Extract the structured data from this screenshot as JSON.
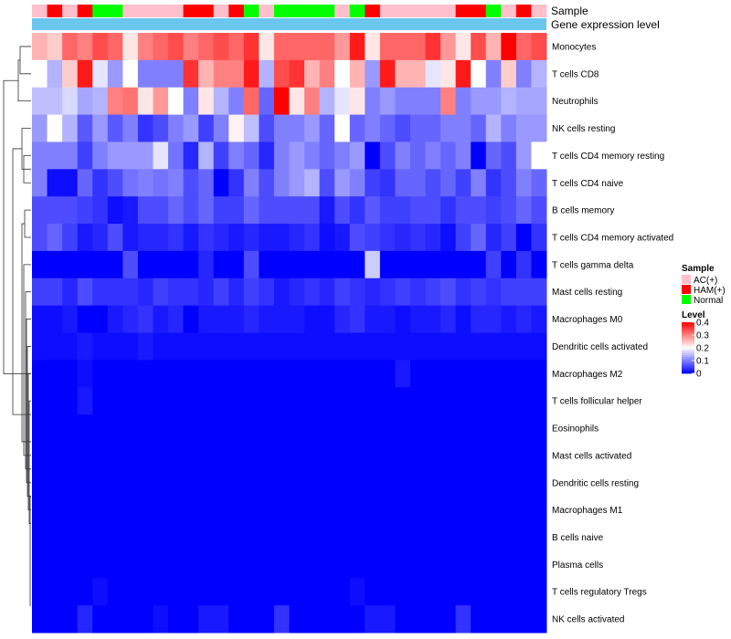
{
  "chart_data": {
    "type": "heatmap",
    "annotation_labels": [
      "Sample",
      "Gene expression level"
    ],
    "rows": [
      "Monocytes",
      "T cells CD8",
      "Neutrophils",
      "NK cells resting",
      "T cells CD4 memory resting",
      "T cells CD4 naive",
      "B cells memory",
      "T cells CD4 memory activated",
      "T cells gamma delta",
      "Mast cells resting",
      "Macrophages M0",
      "Dendritic cells activated",
      "Macrophages M2",
      "T cells follicular helper",
      "Eosinophils",
      "Mast cells activated",
      "Dendritic cells resting",
      "Macrophages M1",
      "B cells naive",
      "Plasma cells",
      "T cells regulatory  Tregs",
      "NK cells activated"
    ],
    "sample_groups": [
      "AC(+)",
      "HAM(+)",
      "AC(+)",
      "HAM(+)",
      "Normal",
      "Normal",
      "AC(+)",
      "AC(+)",
      "AC(+)",
      "AC(+)",
      "HAM(+)",
      "HAM(+)",
      "AC(+)",
      "HAM(+)",
      "Normal",
      "AC(+)",
      "Normal",
      "Normal",
      "Normal",
      "Normal",
      "AC(+)",
      "Normal",
      "HAM(+)",
      "AC(+)",
      "AC(+)",
      "AC(+)",
      "AC(+)",
      "AC(+)",
      "HAM(+)",
      "HAM(+)",
      "Normal",
      "AC(+)",
      "HAM(+)",
      "AC(+)"
    ],
    "gene_expression_level_color": "#6ac7ee",
    "values": [
      [
        0.26,
        0.24,
        0.32,
        0.3,
        0.34,
        0.32,
        0.22,
        0.3,
        0.32,
        0.34,
        0.3,
        0.32,
        0.34,
        0.32,
        0.36,
        0.22,
        0.32,
        0.32,
        0.32,
        0.32,
        0.28,
        0.38,
        0.22,
        0.32,
        0.32,
        0.32,
        0.36,
        0.28,
        0.22,
        0.34,
        0.26,
        0.4,
        0.32,
        0.34
      ],
      [
        0.2,
        0.14,
        0.24,
        0.38,
        0.18,
        0.12,
        0.2,
        0.1,
        0.1,
        0.1,
        0.36,
        0.26,
        0.3,
        0.3,
        0.38,
        0.14,
        0.34,
        0.36,
        0.26,
        0.3,
        0.2,
        0.26,
        0.12,
        0.38,
        0.26,
        0.26,
        0.18,
        0.22,
        0.38,
        0.2,
        0.1,
        0.24,
        0.1,
        0.14
      ],
      [
        0.15,
        0.15,
        0.17,
        0.13,
        0.14,
        0.3,
        0.31,
        0.22,
        0.28,
        0.2,
        0.1,
        0.22,
        0.14,
        0.1,
        0.32,
        0.08,
        0.4,
        0.22,
        0.3,
        0.14,
        0.18,
        0.22,
        0.1,
        0.12,
        0.1,
        0.1,
        0.1,
        0.3,
        0.1,
        0.12,
        0.12,
        0.14,
        0.13,
        0.13
      ],
      [
        0.12,
        0.2,
        0.14,
        0.07,
        0.12,
        0.07,
        0.1,
        0.04,
        0.06,
        0.1,
        0.12,
        0.05,
        0.1,
        0.21,
        0.15,
        0.06,
        0.1,
        0.1,
        0.12,
        0.08,
        0.2,
        0.08,
        0.1,
        0.08,
        0.06,
        0.08,
        0.08,
        0.1,
        0.1,
        0.08,
        0.14,
        0.1,
        0.12,
        0.12
      ],
      [
        0.1,
        0.1,
        0.1,
        0.05,
        0.1,
        0.12,
        0.12,
        0.12,
        0.18,
        0.09,
        0.03,
        0.14,
        0.05,
        0.1,
        0.08,
        0.03,
        0.1,
        0.12,
        0.1,
        0.08,
        0.1,
        0.12,
        0.0,
        0.06,
        0.1,
        0.08,
        0.1,
        0.08,
        0.1,
        0.0,
        0.08,
        0.06,
        0.12,
        0.2
      ],
      [
        0.1,
        0.01,
        0.01,
        0.08,
        0.04,
        0.06,
        0.09,
        0.1,
        0.09,
        0.1,
        0.06,
        0.08,
        0.0,
        0.04,
        0.1,
        0.06,
        0.1,
        0.12,
        0.14,
        0.06,
        0.12,
        0.1,
        0.05,
        0.04,
        0.08,
        0.08,
        0.06,
        0.08,
        0.05,
        0.1,
        0.04,
        0.06,
        0.1,
        0.08
      ],
      [
        0.06,
        0.06,
        0.06,
        0.05,
        0.04,
        0.01,
        0.02,
        0.06,
        0.06,
        0.08,
        0.06,
        0.08,
        0.05,
        0.05,
        0.08,
        0.06,
        0.06,
        0.06,
        0.06,
        0.02,
        0.06,
        0.04,
        0.07,
        0.05,
        0.05,
        0.06,
        0.06,
        0.04,
        0.06,
        0.06,
        0.05,
        0.06,
        0.08,
        0.06
      ],
      [
        0.06,
        0.08,
        0.05,
        0.02,
        0.03,
        0.06,
        0.02,
        0.03,
        0.03,
        0.04,
        0.02,
        0.04,
        0.03,
        0.02,
        0.03,
        0.02,
        0.02,
        0.03,
        0.04,
        0.01,
        0.02,
        0.06,
        0.05,
        0.04,
        0.03,
        0.04,
        0.03,
        0.01,
        0.05,
        0.08,
        0.03,
        0.05,
        0.0,
        0.04
      ],
      [
        0.0,
        0.0,
        0.0,
        0.0,
        0.0,
        0.0,
        0.06,
        0.0,
        0.0,
        0.0,
        0.0,
        0.03,
        0.0,
        0.0,
        0.06,
        0.0,
        0.0,
        0.0,
        0.0,
        0.0,
        0.0,
        0.0,
        0.16,
        0.0,
        0.0,
        0.0,
        0.0,
        0.0,
        0.0,
        0.0,
        0.05,
        0.0,
        0.04,
        0.0
      ],
      [
        0.05,
        0.05,
        0.03,
        0.06,
        0.04,
        0.04,
        0.04,
        0.03,
        0.05,
        0.04,
        0.04,
        0.03,
        0.05,
        0.03,
        0.05,
        0.04,
        0.02,
        0.03,
        0.04,
        0.03,
        0.05,
        0.04,
        0.03,
        0.04,
        0.05,
        0.04,
        0.05,
        0.06,
        0.04,
        0.05,
        0.04,
        0.05,
        0.05,
        0.05
      ],
      [
        0.01,
        0.01,
        0.02,
        0.0,
        0.0,
        0.02,
        0.03,
        0.04,
        0.02,
        0.03,
        0.0,
        0.02,
        0.02,
        0.02,
        0.03,
        0.02,
        0.02,
        0.02,
        0.01,
        0.01,
        0.03,
        0.04,
        0.02,
        0.02,
        0.01,
        0.02,
        0.02,
        0.03,
        0.01,
        0.03,
        0.03,
        0.02,
        0.03,
        0.02
      ],
      [
        0.01,
        0.01,
        0.01,
        0.02,
        0.01,
        0.01,
        0.01,
        0.02,
        0.01,
        0.01,
        0.01,
        0.01,
        0.01,
        0.01,
        0.01,
        0.01,
        0.01,
        0.01,
        0.01,
        0.01,
        0.01,
        0.01,
        0.01,
        0.01,
        0.01,
        0.01,
        0.01,
        0.01,
        0.01,
        0.01,
        0.01,
        0.01,
        0.01,
        0.01
      ],
      [
        0.0,
        0.0,
        0.0,
        0.01,
        0.0,
        0.0,
        0.0,
        0.0,
        0.0,
        0.0,
        0.0,
        0.0,
        0.0,
        0.0,
        0.0,
        0.0,
        0.0,
        0.0,
        0.0,
        0.0,
        0.0,
        0.0,
        0.0,
        0.0,
        0.02,
        0.0,
        0.0,
        0.0,
        0.0,
        0.0,
        0.0,
        0.0,
        0.0,
        0.0
      ],
      [
        0.0,
        0.0,
        0.0,
        0.02,
        0.0,
        0.0,
        0.0,
        0.0,
        0.0,
        0.0,
        0.0,
        0.0,
        0.0,
        0.0,
        0.0,
        0.0,
        0.0,
        0.0,
        0.0,
        0.0,
        0.0,
        0.0,
        0.0,
        0.0,
        0.0,
        0.0,
        0.0,
        0.0,
        0.0,
        0.0,
        0.0,
        0.0,
        0.0,
        0.0
      ],
      [
        0.0,
        0.0,
        0.0,
        0.0,
        0.0,
        0.0,
        0.0,
        0.0,
        0.0,
        0.0,
        0.0,
        0.0,
        0.0,
        0.0,
        0.0,
        0.0,
        0.0,
        0.0,
        0.0,
        0.0,
        0.0,
        0.0,
        0.0,
        0.0,
        0.0,
        0.0,
        0.0,
        0.0,
        0.0,
        0.0,
        0.0,
        0.0,
        0.0,
        0.0
      ],
      [
        0.0,
        0.0,
        0.0,
        0.0,
        0.0,
        0.0,
        0.0,
        0.0,
        0.0,
        0.0,
        0.0,
        0.0,
        0.0,
        0.0,
        0.0,
        0.0,
        0.0,
        0.0,
        0.0,
        0.0,
        0.0,
        0.0,
        0.0,
        0.0,
        0.0,
        0.0,
        0.0,
        0.0,
        0.0,
        0.0,
        0.0,
        0.0,
        0.0,
        0.0
      ],
      [
        0.0,
        0.0,
        0.0,
        0.0,
        0.0,
        0.0,
        0.0,
        0.0,
        0.0,
        0.0,
        0.0,
        0.0,
        0.0,
        0.0,
        0.0,
        0.0,
        0.0,
        0.0,
        0.0,
        0.0,
        0.0,
        0.0,
        0.0,
        0.0,
        0.0,
        0.0,
        0.0,
        0.0,
        0.0,
        0.0,
        0.0,
        0.0,
        0.0,
        0.0
      ],
      [
        0.0,
        0.0,
        0.0,
        0.0,
        0.0,
        0.0,
        0.0,
        0.0,
        0.0,
        0.0,
        0.0,
        0.0,
        0.0,
        0.0,
        0.0,
        0.0,
        0.0,
        0.0,
        0.0,
        0.0,
        0.0,
        0.0,
        0.0,
        0.0,
        0.0,
        0.0,
        0.0,
        0.0,
        0.0,
        0.0,
        0.0,
        0.0,
        0.0,
        0.0
      ],
      [
        0.0,
        0.0,
        0.0,
        0.0,
        0.0,
        0.0,
        0.0,
        0.0,
        0.0,
        0.0,
        0.0,
        0.0,
        0.0,
        0.0,
        0.0,
        0.0,
        0.0,
        0.0,
        0.0,
        0.0,
        0.0,
        0.0,
        0.0,
        0.0,
        0.0,
        0.0,
        0.0,
        0.0,
        0.0,
        0.0,
        0.0,
        0.0,
        0.0,
        0.0
      ],
      [
        0.0,
        0.0,
        0.0,
        0.0,
        0.0,
        0.0,
        0.0,
        0.0,
        0.0,
        0.0,
        0.0,
        0.0,
        0.0,
        0.0,
        0.0,
        0.0,
        0.0,
        0.0,
        0.0,
        0.0,
        0.0,
        0.0,
        0.0,
        0.0,
        0.0,
        0.0,
        0.0,
        0.0,
        0.0,
        0.0,
        0.0,
        0.0,
        0.0,
        0.0
      ],
      [
        0.0,
        0.0,
        0.0,
        0.0,
        0.01,
        0.0,
        0.0,
        0.0,
        0.0,
        0.0,
        0.0,
        0.0,
        0.0,
        0.0,
        0.0,
        0.0,
        0.0,
        0.0,
        0.0,
        0.0,
        0.0,
        0.01,
        0.0,
        0.0,
        0.0,
        0.0,
        0.0,
        0.0,
        0.0,
        0.0,
        0.0,
        0.0,
        0.0,
        0.0
      ],
      [
        0.0,
        0.0,
        0.0,
        0.03,
        0.0,
        0.0,
        0.0,
        0.0,
        0.01,
        0.0,
        0.0,
        0.02,
        0.02,
        0.0,
        0.0,
        0.0,
        0.04,
        0.0,
        0.0,
        0.0,
        0.0,
        0.0,
        0.02,
        0.02,
        0.0,
        0.0,
        0.0,
        0.0,
        0.04,
        0.0,
        0.0,
        0.0,
        0.0,
        0.0
      ]
    ],
    "legend": {
      "sample": {
        "title": "Sample",
        "entries": [
          {
            "label": "AC(+)",
            "color": "#ffc0cb"
          },
          {
            "label": "HAM(+)",
            "color": "#ff0000"
          },
          {
            "label": "Normal",
            "color": "#00ff00"
          }
        ]
      },
      "level": {
        "title": "Level",
        "ticks": [
          {
            "value": 0.4,
            "label": "0.4"
          },
          {
            "value": 0.3,
            "label": "0.3"
          },
          {
            "value": 0.2,
            "label": "0.2"
          },
          {
            "value": 0.1,
            "label": "0.1"
          },
          {
            "value": 0.0,
            "label": "0"
          }
        ],
        "range": [
          0,
          0.4
        ],
        "colors": {
          "low": "#0000ff",
          "mid": "#ffffff",
          "high": "#ff0000"
        }
      }
    }
  }
}
